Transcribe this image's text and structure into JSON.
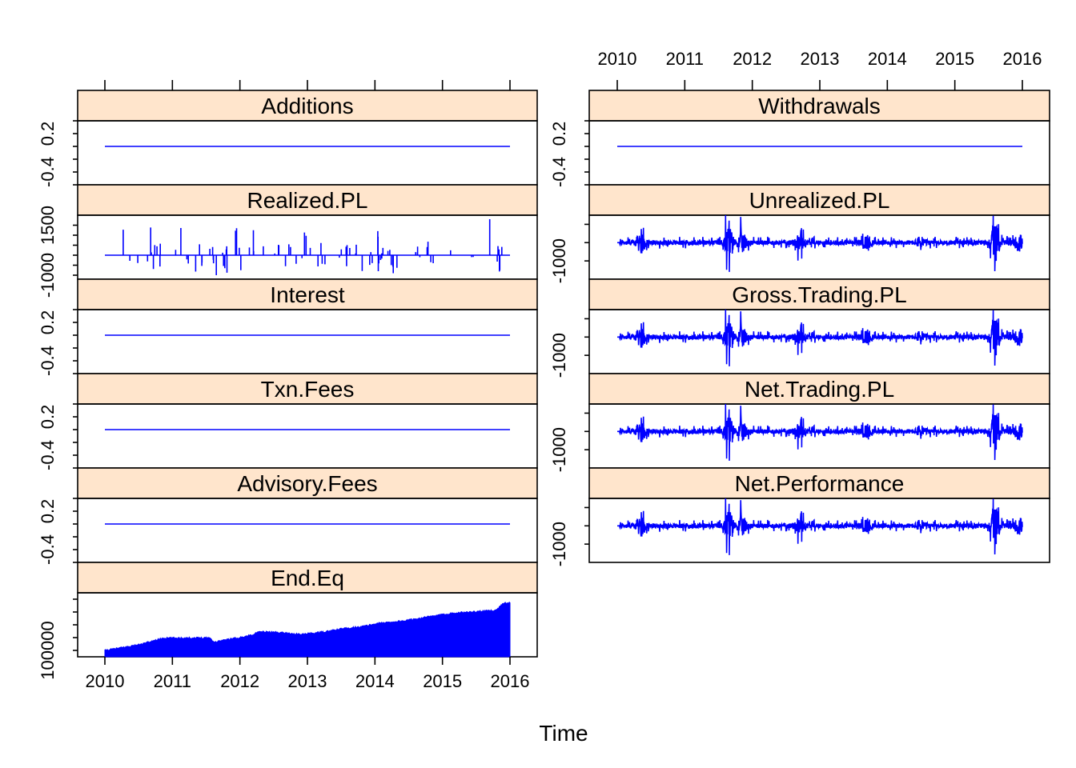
{
  "chart_data": {
    "type": "line",
    "layout_description": "two-column lattice of time-series panels",
    "xlabel": "Time",
    "x_range": [
      2010,
      2016
    ],
    "x_ticks": [
      "2010",
      "2011",
      "2012",
      "2013",
      "2014",
      "2015",
      "2016"
    ],
    "series_color": "#0000ff",
    "strip_color": "#ffe5cc",
    "left_column": [
      {
        "name": "Additions",
        "kind": "flat",
        "value": 0,
        "ylim": [
          -0.6,
          0.4
        ],
        "y_tick_values": [
          -0.6,
          -0.4,
          -0.2,
          0,
          0.2,
          0.4
        ],
        "y_tick_labels": [
          "-0.4",
          "0.2"
        ]
      },
      {
        "name": "Realized.PL",
        "kind": "spikes",
        "baseline": 0,
        "ylim": [
          -1200,
          2000
        ],
        "spike_range": [
          -1000,
          1800
        ],
        "y_tick_values": [
          -1000,
          -500,
          0,
          500,
          1000,
          1500
        ],
        "y_tick_labels": [
          "-1000",
          "1500"
        ]
      },
      {
        "name": "Interest",
        "kind": "flat",
        "value": 0,
        "ylim": [
          -0.6,
          0.4
        ],
        "y_tick_values": [
          -0.6,
          -0.4,
          -0.2,
          0,
          0.2,
          0.4
        ],
        "y_tick_labels": [
          "-0.4",
          "0.2"
        ]
      },
      {
        "name": "Txn.Fees",
        "kind": "flat",
        "value": 0,
        "ylim": [
          -0.6,
          0.4
        ],
        "y_tick_values": [
          -0.6,
          -0.4,
          -0.2,
          0,
          0.2,
          0.4
        ],
        "y_tick_labels": [
          "-0.4",
          "0.2"
        ]
      },
      {
        "name": "Advisory.Fees",
        "kind": "flat",
        "value": 0,
        "ylim": [
          -0.6,
          0.4
        ],
        "y_tick_values": [
          -0.6,
          -0.4,
          -0.2,
          0,
          0.2,
          0.4
        ],
        "y_tick_labels": [
          "-0.4",
          "0.2"
        ]
      },
      {
        "name": "End.Eq",
        "kind": "area",
        "ylim": [
          90000,
          190000
        ],
        "y_tick_values": [
          100000,
          120000,
          140000,
          160000,
          180000
        ],
        "y_tick_labels": [
          "100000"
        ],
        "x": [
          2010.0,
          2010.15,
          2010.4,
          2010.55,
          2010.85,
          2011.0,
          2011.3,
          2011.55,
          2011.62,
          2011.75,
          2012.1,
          2012.3,
          2012.55,
          2012.9,
          2013.25,
          2013.55,
          2013.85,
          2014.05,
          2014.45,
          2014.7,
          2014.95,
          2015.2,
          2015.5,
          2015.8,
          2015.9,
          2016.0
        ],
        "y": [
          100000,
          102500,
          107000,
          110000,
          119000,
          119500,
          119500,
          120000,
          113000,
          116000,
          122000,
          129000,
          128500,
          125000,
          129000,
          134500,
          138000,
          142500,
          146500,
          151000,
          155000,
          159000,
          160500,
          163000,
          174000,
          174500
        ]
      }
    ],
    "right_column": [
      {
        "name": "Withdrawals",
        "kind": "flat",
        "value": 0,
        "ylim": [
          -0.6,
          0.4
        ],
        "y_tick_values": [
          -0.6,
          -0.4,
          -0.2,
          0,
          0.2,
          0.4
        ],
        "y_tick_labels": [
          "-0.4",
          "0.2"
        ]
      },
      {
        "name": "Unrealized.PL",
        "kind": "noise",
        "baseline": 0,
        "ylim": [
          -2000,
          1500
        ],
        "noise_range": [
          -1600,
          1500
        ],
        "y_tick_values": [
          -1000,
          0,
          1000
        ],
        "y_tick_labels": [
          "-1000"
        ]
      },
      {
        "name": "Gross.Trading.PL",
        "kind": "noise",
        "baseline": 0,
        "ylim": [
          -2000,
          1500
        ],
        "noise_range": [
          -1600,
          1500
        ],
        "y_tick_values": [
          -1000,
          0,
          1000
        ],
        "y_tick_labels": [
          "-1000"
        ]
      },
      {
        "name": "Net.Trading.PL",
        "kind": "noise",
        "baseline": 0,
        "ylim": [
          -2000,
          1500
        ],
        "noise_range": [
          -1600,
          1500
        ],
        "y_tick_values": [
          -1000,
          0,
          1000
        ],
        "y_tick_labels": [
          "-1000"
        ]
      },
      {
        "name": "Net.Performance",
        "kind": "noise",
        "baseline": 0,
        "ylim": [
          -2000,
          1500
        ],
        "noise_range": [
          -1600,
          1500
        ],
        "y_tick_values": [
          -1000,
          0,
          1000
        ],
        "y_tick_labels": [
          "-1000"
        ]
      }
    ]
  }
}
